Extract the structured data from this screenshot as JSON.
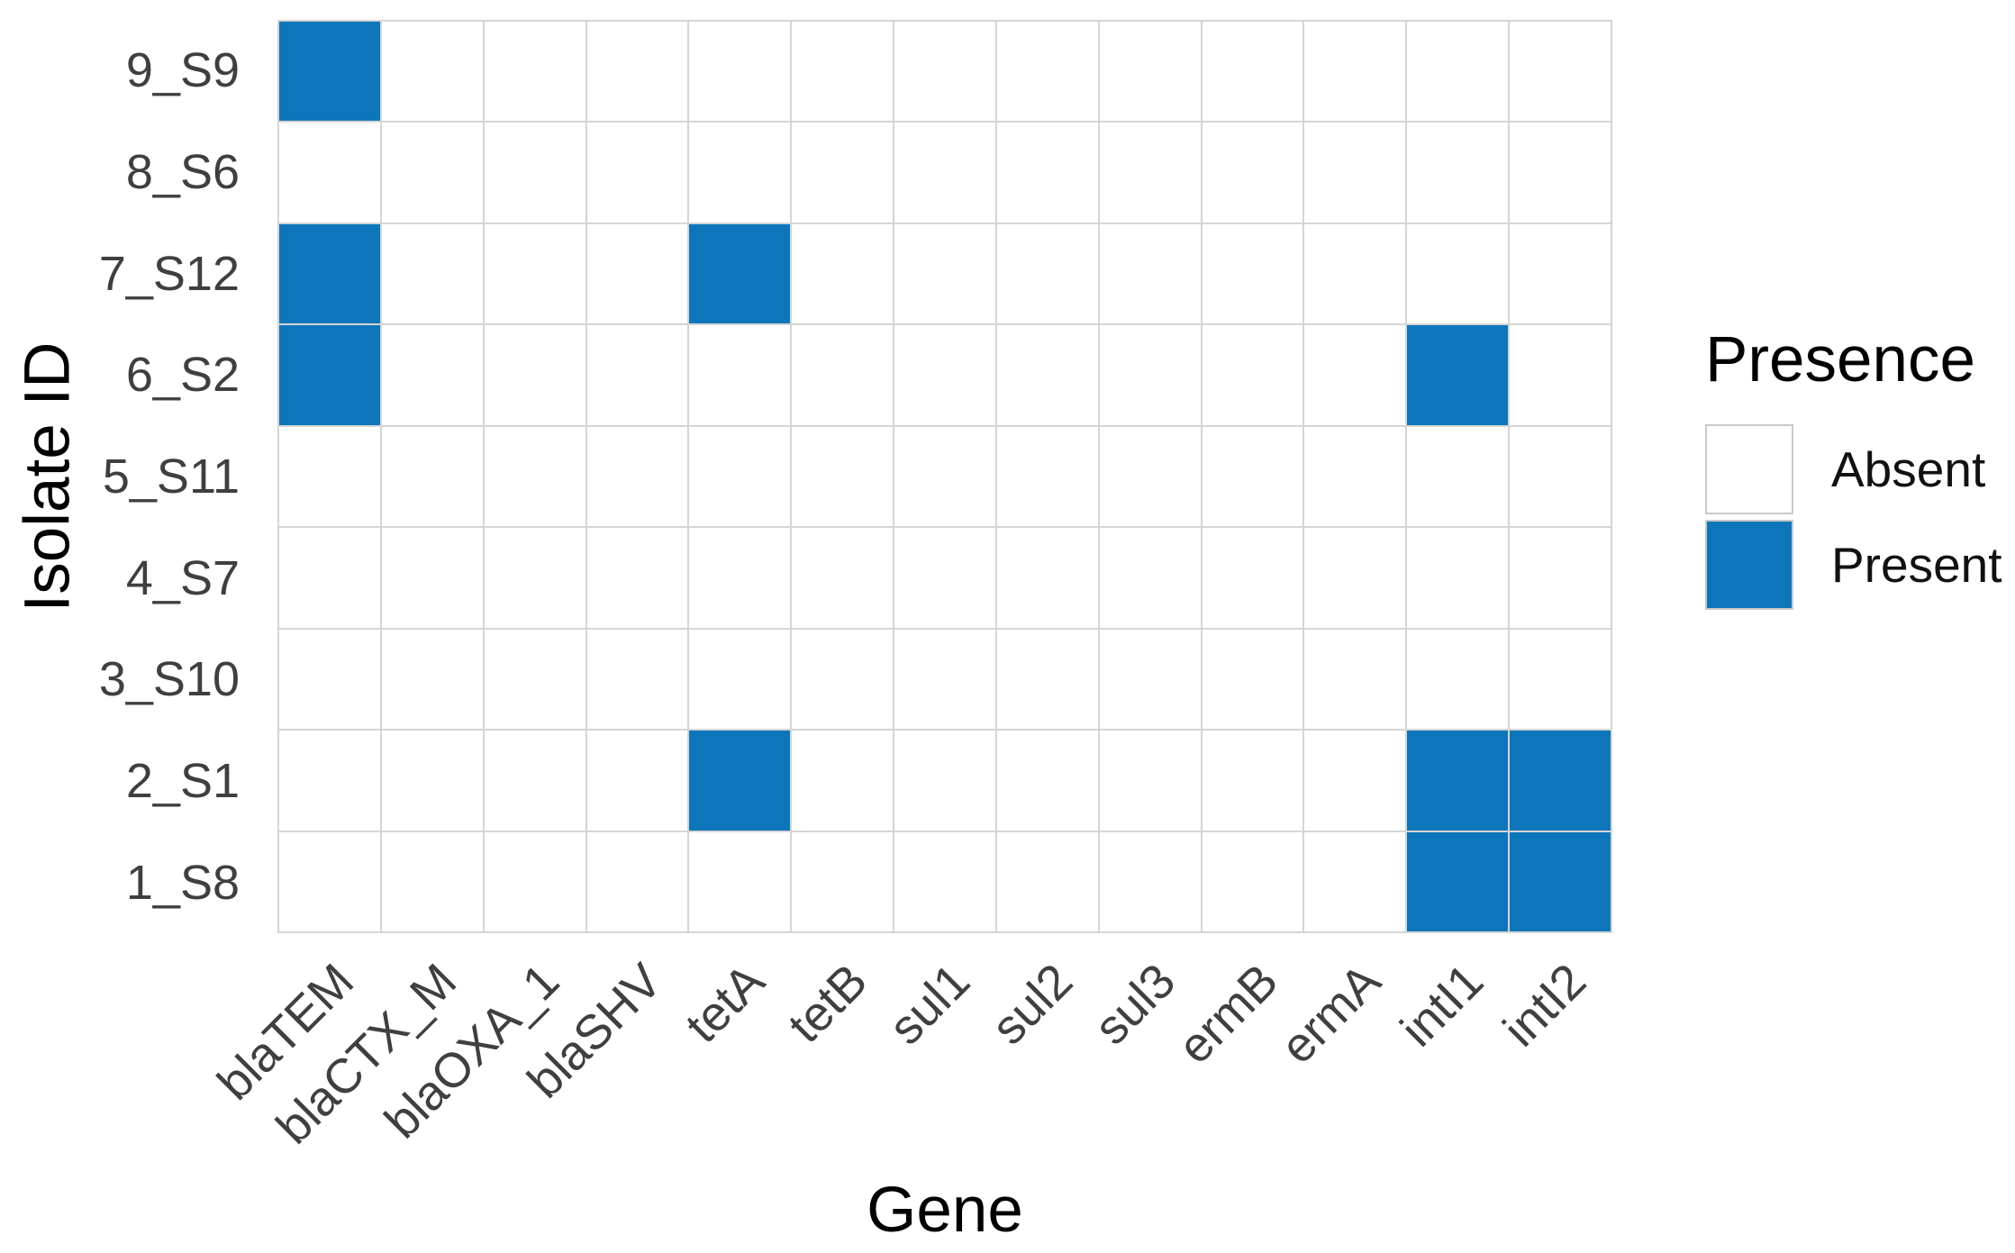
{
  "chart_data": {
    "type": "heatmap",
    "title": "",
    "xlabel": "Gene",
    "ylabel": "Isolate ID",
    "x_categories": [
      "blaTEM",
      "blaCTX_M",
      "blaOXA_1",
      "blaSHV",
      "tetA",
      "tetB",
      "sul1",
      "sul2",
      "sul3",
      "ermB",
      "ermA",
      "intI1",
      "intI2"
    ],
    "y_categories_top_to_bottom": [
      "9_S9",
      "8_S6",
      "7_S12",
      "6_S2",
      "5_S11",
      "4_S7",
      "3_S10",
      "2_S1",
      "1_S8"
    ],
    "values_rows_top_to_bottom": [
      [
        1,
        0,
        0,
        0,
        0,
        0,
        0,
        0,
        0,
        0,
        0,
        0,
        0
      ],
      [
        0,
        0,
        0,
        0,
        0,
        0,
        0,
        0,
        0,
        0,
        0,
        0,
        0
      ],
      [
        1,
        0,
        0,
        0,
        1,
        0,
        0,
        0,
        0,
        0,
        0,
        0,
        0
      ],
      [
        1,
        0,
        0,
        0,
        0,
        0,
        0,
        0,
        0,
        0,
        0,
        1,
        0
      ],
      [
        0,
        0,
        0,
        0,
        0,
        0,
        0,
        0,
        0,
        0,
        0,
        0,
        0
      ],
      [
        0,
        0,
        0,
        0,
        0,
        0,
        0,
        0,
        0,
        0,
        0,
        0,
        0
      ],
      [
        0,
        0,
        0,
        0,
        0,
        0,
        0,
        0,
        0,
        0,
        0,
        0,
        0
      ],
      [
        0,
        0,
        0,
        0,
        1,
        0,
        0,
        0,
        0,
        0,
        0,
        1,
        1
      ],
      [
        0,
        0,
        0,
        0,
        0,
        0,
        0,
        0,
        0,
        0,
        0,
        1,
        1
      ]
    ],
    "value_encoding": {
      "0": "Absent",
      "1": "Present"
    },
    "present_pairs": [
      [
        "9_S9",
        "blaTEM"
      ],
      [
        "7_S12",
        "blaTEM"
      ],
      [
        "7_S12",
        "tetA"
      ],
      [
        "6_S2",
        "blaTEM"
      ],
      [
        "6_S2",
        "intI1"
      ],
      [
        "2_S1",
        "tetA"
      ],
      [
        "2_S1",
        "intI1"
      ],
      [
        "2_S1",
        "intI2"
      ],
      [
        "1_S8",
        "intI1"
      ],
      [
        "1_S8",
        "intI2"
      ]
    ],
    "legend": {
      "title": "Presence",
      "position": "right",
      "entries": [
        {
          "label": "Absent",
          "value": 0,
          "color": "#ffffff"
        },
        {
          "label": "Present",
          "value": 1,
          "color": "#0d76bb"
        }
      ]
    },
    "layout_hints": {
      "x_tick_angle": 45,
      "grid": true
    },
    "colors": {
      "present": "#0d76bb",
      "absent": "#ffffff",
      "gridline": "#d5d5d5",
      "tick_text": "#3f3f3f",
      "title_text": "#000000",
      "legend_text": "#111111",
      "key_border": "#c9c9c9",
      "background": "#ffffff"
    }
  }
}
